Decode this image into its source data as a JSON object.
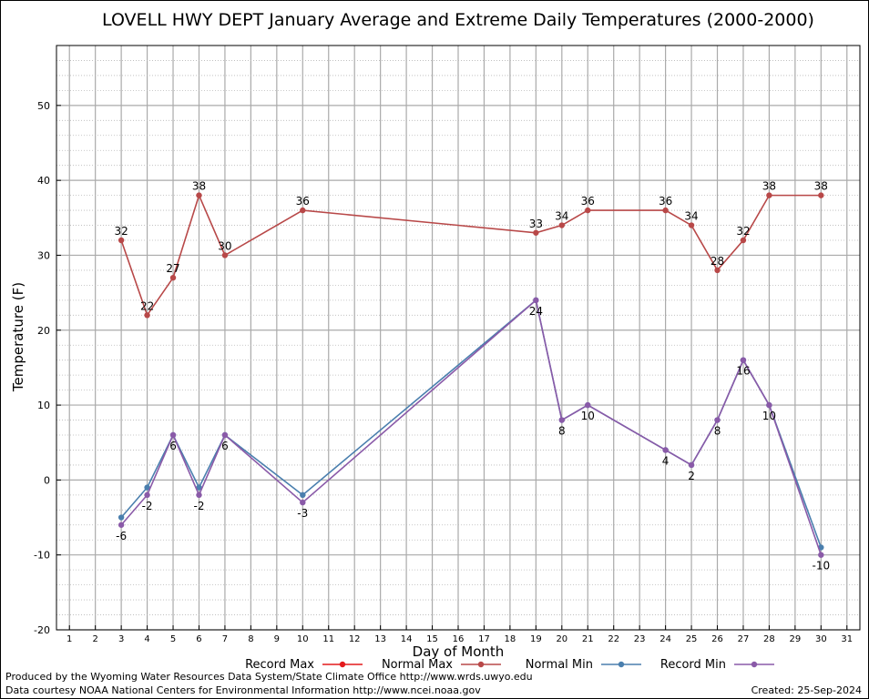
{
  "chart_data": {
    "type": "line",
    "title": "LOVELL HWY DEPT January Average and Extreme Daily Temperatures (2000-2000)",
    "xlabel": "Day of Month",
    "ylabel": "Temperature (F)",
    "xlim": [
      0.5,
      31.5
    ],
    "ylim": [
      -20,
      58
    ],
    "x_ticks": [
      1,
      2,
      3,
      4,
      5,
      6,
      7,
      8,
      9,
      10,
      11,
      12,
      13,
      14,
      15,
      16,
      17,
      18,
      19,
      20,
      21,
      22,
      23,
      24,
      25,
      26,
      27,
      28,
      29,
      30,
      31
    ],
    "y_ticks": [
      -20,
      -10,
      0,
      10,
      20,
      30,
      40,
      50
    ],
    "grid": true,
    "legend_position": "bottom",
    "series": [
      {
        "name": "Record Max",
        "color": "#e41a1c",
        "x": [],
        "y": [],
        "labels": false
      },
      {
        "name": "Normal Max",
        "color": "#b84848",
        "x": [
          3,
          4,
          5,
          6,
          7,
          10,
          19,
          20,
          21,
          24,
          25,
          26,
          27,
          28,
          30
        ],
        "y": [
          32,
          22,
          27,
          38,
          30,
          36,
          33,
          34,
          36,
          36,
          34,
          28,
          32,
          38,
          38
        ],
        "labels": "above"
      },
      {
        "name": "Normal Min",
        "color": "#4a7fae",
        "x": [
          3,
          4,
          5,
          6,
          7,
          10,
          19,
          20,
          21,
          24,
          25,
          26,
          27,
          28,
          30
        ],
        "y": [
          -5,
          -1,
          6,
          -1,
          6,
          -2,
          24,
          8,
          10,
          4,
          2,
          8,
          16,
          10,
          -9
        ],
        "labels": false
      },
      {
        "name": "Record Min",
        "color": "#8a5aa8",
        "x": [
          3,
          4,
          5,
          6,
          7,
          10,
          19,
          20,
          21,
          24,
          25,
          26,
          27,
          28,
          30
        ],
        "y": [
          -6,
          -2,
          6,
          -2,
          6,
          -3,
          24,
          8,
          10,
          4,
          2,
          8,
          16,
          10,
          -10
        ],
        "labels": "below"
      }
    ]
  },
  "footer": {
    "produced_by": "Produced by the Wyoming Water Resources Data System/State Climate Office http://www.wrds.uwyo.edu",
    "courtesy": "Data courtesy NOAA National Centers for Environmental Information http://www.ncei.noaa.gov",
    "created": "Created:  25-Sep-2024"
  }
}
